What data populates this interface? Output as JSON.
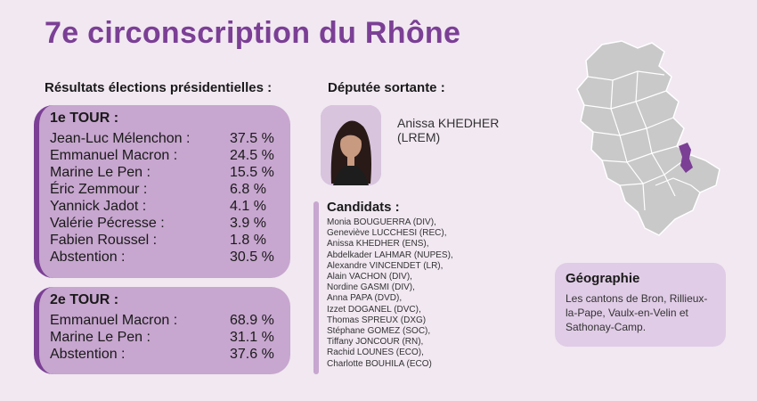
{
  "title": "7e circonscription du Rhône",
  "results": {
    "heading": "Résultats élections présidentielles :",
    "tour1": {
      "title": "1e TOUR :",
      "rows": [
        {
          "name": "Jean-Luc Mélenchon :",
          "value": "37.5 %"
        },
        {
          "name": "Emmanuel Macron :",
          "value": "24.5 %"
        },
        {
          "name": "Marine Le Pen :",
          "value": "15.5 %"
        },
        {
          "name": "Éric Zemmour :",
          "value": "6.8 %"
        },
        {
          "name": "Yannick Jadot :",
          "value": "4.1 %"
        },
        {
          "name": "Valérie Pécresse :",
          "value": "3.9 %"
        },
        {
          "name": "Fabien Roussel :",
          "value": "1.8 %"
        },
        {
          "name": "Abstention :",
          "value": "30.5 %"
        }
      ]
    },
    "tour2": {
      "title": "2e TOUR :",
      "rows": [
        {
          "name": "Emmanuel Macron :",
          "value": "68.9 %"
        },
        {
          "name": "Marine Le Pen :",
          "value": "31.1 %"
        },
        {
          "name": "Abstention :",
          "value": "37.6 %"
        }
      ]
    }
  },
  "deputy": {
    "heading": "Députée sortante :",
    "name": "Anissa KHEDHER",
    "party": "(LREM)"
  },
  "candidates": {
    "heading": "Candidats :",
    "list": [
      "Monia BOUGUERRA (DIV),",
      "Geneviève LUCCHESI (REC),",
      "Anissa KHEDHER (ENS),",
      "Abdelkader LAHMAR (NUPES),",
      "Alexandre VINCENDET (LR),",
      "Alain VACHON (DIV),",
      "Nordine GASMI (DIV),",
      "Anna PAPA (DVD),",
      "Izzet DOGANEL (DVC),",
      "Thomas SPREUX (DXG)",
      "Stéphane GOMEZ (SOC),",
      "Tiffany JONCOUR (RN),",
      "Rachid LOUNES (ECO),",
      "Charlotte BOUHILA (ECO)"
    ]
  },
  "geography": {
    "title": "Géographie",
    "text": "Les cantons de Bron, Rillieux-la-Pape, Vaulx-en-Velin et Sathonay-Camp."
  },
  "colors": {
    "accent": "#7b3f95",
    "card": "#c7a6cf",
    "card_light": "#e0cce6",
    "background": "#f1e8f1",
    "map_fill": "#c9c9c9",
    "map_highlight": "#7b3f95"
  }
}
